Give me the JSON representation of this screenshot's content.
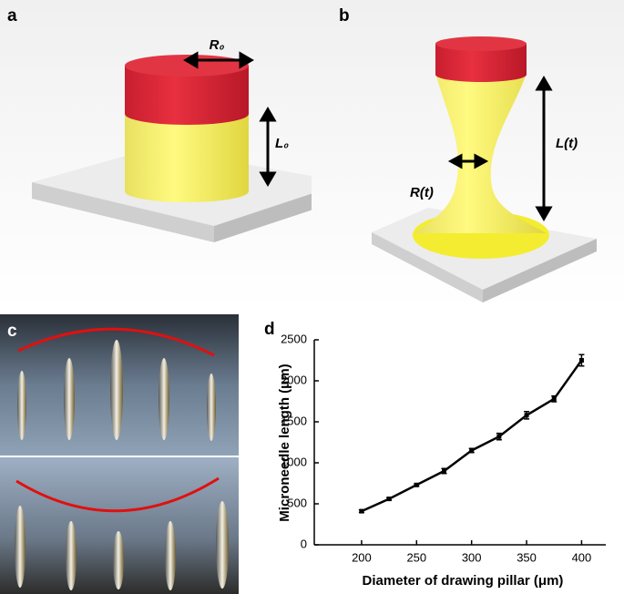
{
  "figure": {
    "panel_labels": [
      "a",
      "b",
      "c",
      "d"
    ],
    "a_annotations": [
      "R₀",
      "L₀"
    ],
    "b_annotations": [
      "L(t)",
      "R(t)"
    ]
  },
  "chart_data": {
    "type": "line",
    "x_label": "Diameter of drawing pillar (μm)",
    "y_label": "Microneedle length (μm)",
    "x": [
      200,
      225,
      250,
      275,
      300,
      325,
      350,
      375,
      400
    ],
    "values": [
      410,
      560,
      730,
      900,
      1150,
      1320,
      1580,
      1780,
      2250
    ],
    "errors": [
      15,
      15,
      15,
      30,
      25,
      40,
      45,
      35,
      70
    ],
    "color": "#000000",
    "xlim": [
      157,
      422
    ],
    "xticks": [
      200,
      250,
      300,
      350,
      400
    ],
    "ylim": [
      0,
      2500
    ],
    "yticks": [
      0,
      500,
      1000,
      1500,
      2000,
      2500
    ]
  }
}
